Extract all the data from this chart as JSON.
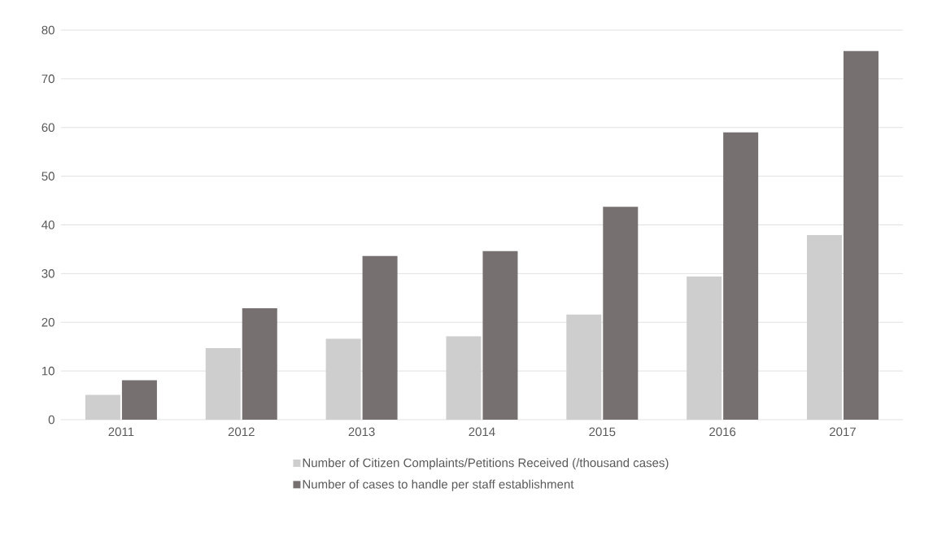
{
  "chart_data": {
    "type": "bar",
    "categories": [
      "2011",
      "2012",
      "2013",
      "2014",
      "2015",
      "2016",
      "2017"
    ],
    "series": [
      {
        "name": "Number of Citizen Complaints/Petitions Received (/thousand cases)",
        "color": "#cfcecf",
        "values": [
          5.1,
          14.7,
          16.6,
          17.1,
          21.6,
          29.4,
          37.9
        ]
      },
      {
        "name": "Number of cases to handle per staff establishment",
        "color": "#767170",
        "values": [
          8.1,
          22.9,
          33.6,
          34.6,
          43.7,
          59.0,
          75.7
        ]
      }
    ],
    "ylim": [
      0,
      80
    ],
    "yticks": [
      0,
      10,
      20,
      30,
      40,
      50,
      60,
      70,
      80
    ],
    "grid": "y",
    "legend": "bottom"
  }
}
